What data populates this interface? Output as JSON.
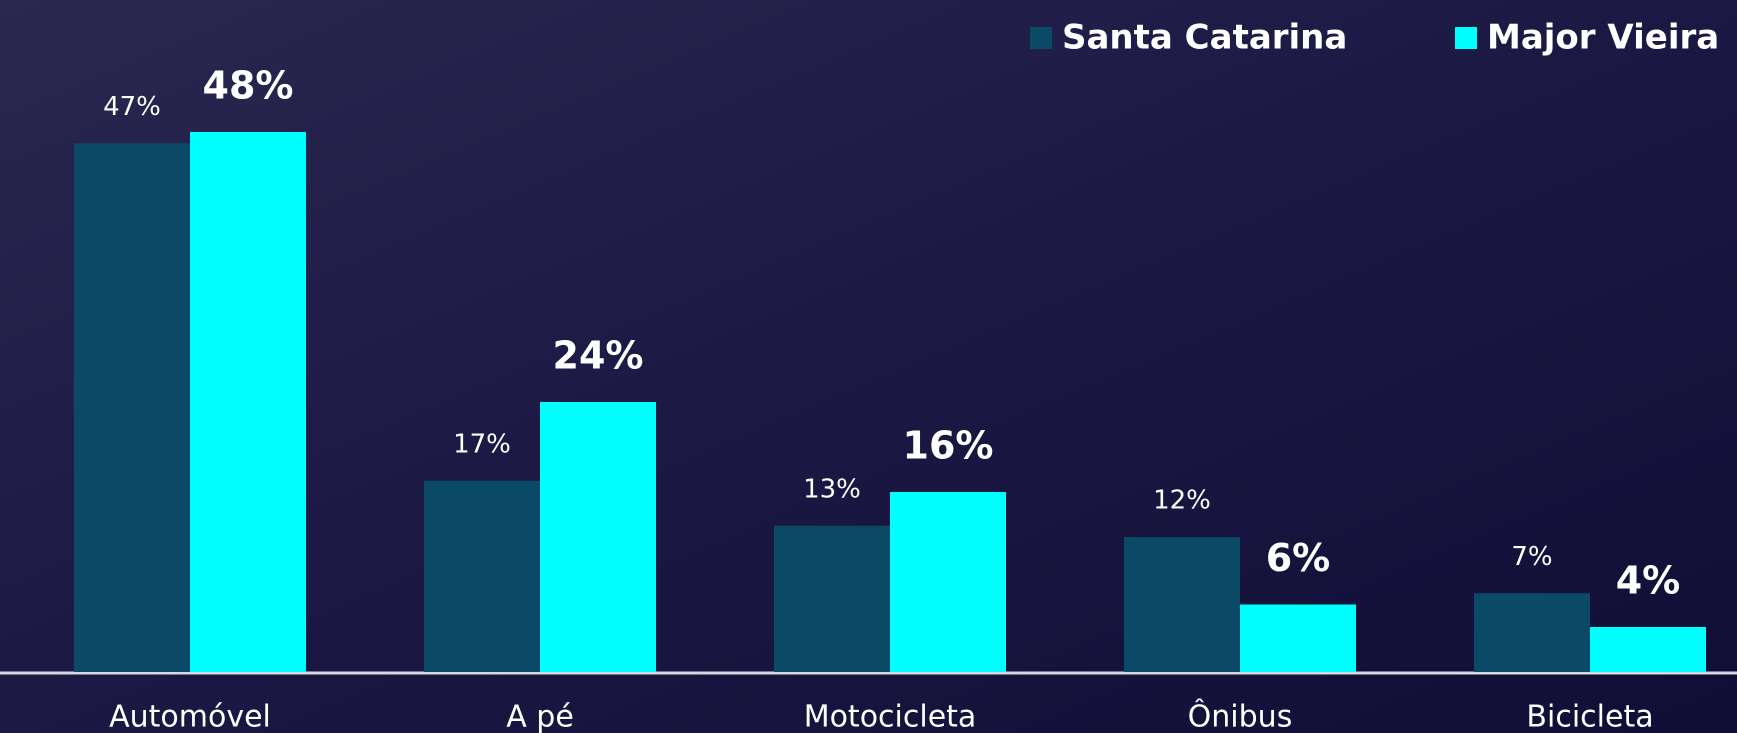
{
  "chart_data": {
    "type": "bar",
    "categories": [
      "Automóvel",
      "A pé",
      "Motocicleta",
      "Ônibus",
      "Bicicleta"
    ],
    "series": [
      {
        "name": "Santa Catarina",
        "color": "#0b4a66",
        "values": [
          47,
          17,
          13,
          12,
          7
        ],
        "value_labels": [
          "47%",
          "17%",
          "13%",
          "12%",
          "7%"
        ]
      },
      {
        "name": "Major Vieira",
        "color": "#00ffff",
        "values": [
          48,
          24,
          16,
          6,
          4
        ],
        "value_labels": [
          "48%",
          "24%",
          "16%",
          "6%",
          "4%"
        ]
      }
    ],
    "legend": "top-right"
  }
}
